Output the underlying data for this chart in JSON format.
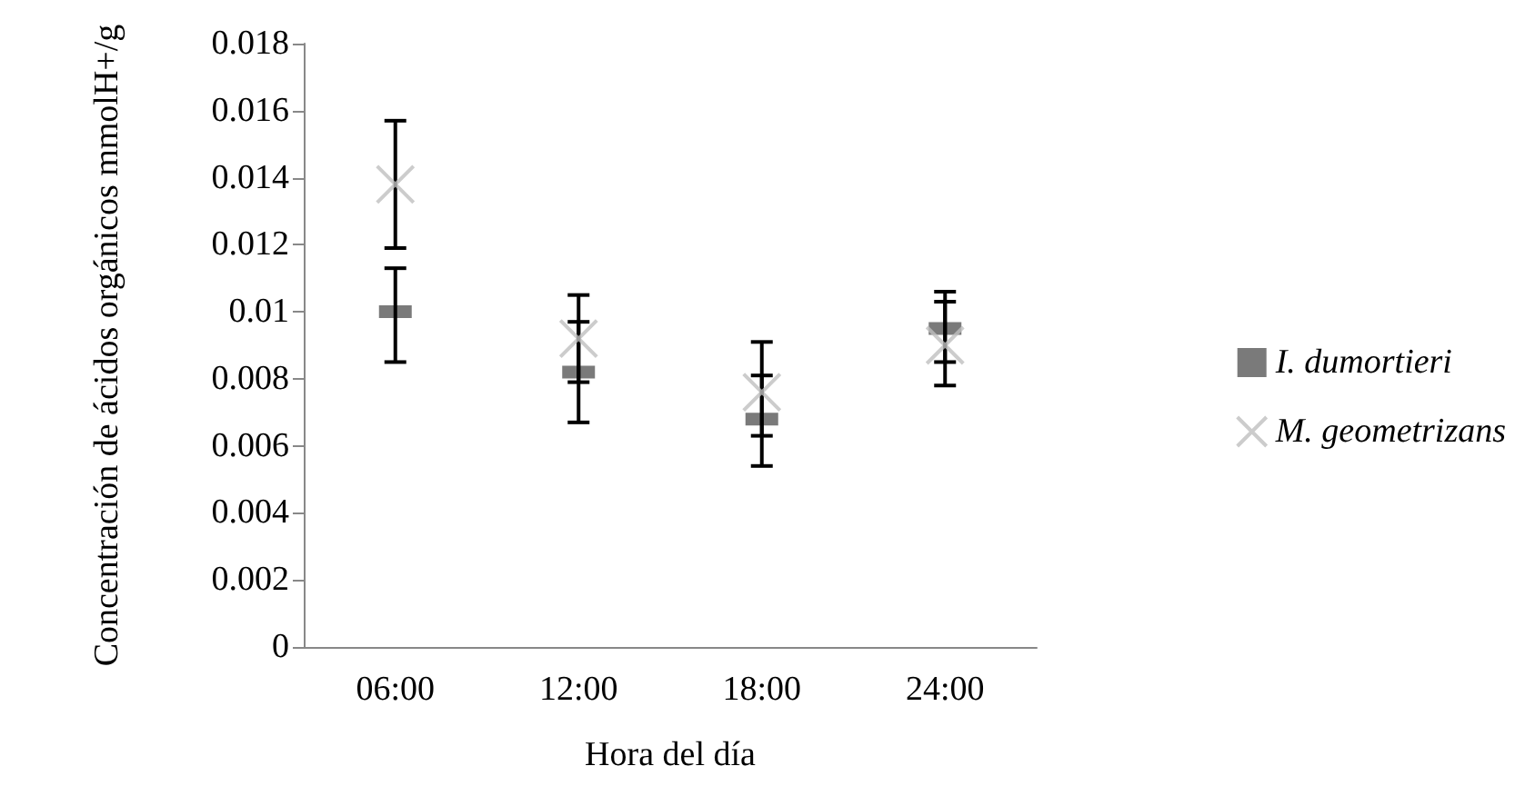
{
  "chart_data": {
    "type": "scatter",
    "xlabel": "Hora del día",
    "ylabel": "Concentración de ácidos orgánicos mmolH+/g",
    "categories": [
      "06:00",
      "12:00",
      "18:00",
      "24:00"
    ],
    "series": [
      {
        "name": "I. dumortieri",
        "color": "#595959",
        "marker": "square",
        "values": [
          0.01,
          0.0082,
          0.0068,
          0.0095
        ],
        "errors": [
          [
            0.0085,
            0.0113
          ],
          [
            0.0067,
            0.0105
          ],
          [
            0.0054,
            0.0091
          ],
          [
            0.0078,
            0.0106
          ]
        ]
      },
      {
        "name": "M. geometrizans",
        "color": "#bfbfbf",
        "marker": "cross",
        "values": [
          0.0138,
          0.0092,
          0.0076,
          0.009
        ],
        "errors": [
          [
            0.0119,
            0.0157
          ],
          [
            0.0079,
            0.0097
          ],
          [
            0.0063,
            0.0081
          ],
          [
            0.0085,
            0.0103
          ]
        ]
      }
    ],
    "ylim": [
      0,
      0.018
    ],
    "yticks": [
      0,
      0.002,
      0.004,
      0.006,
      0.008,
      0.01,
      0.012,
      0.014,
      0.016,
      0.018
    ],
    "grid": false,
    "legend": "right"
  }
}
